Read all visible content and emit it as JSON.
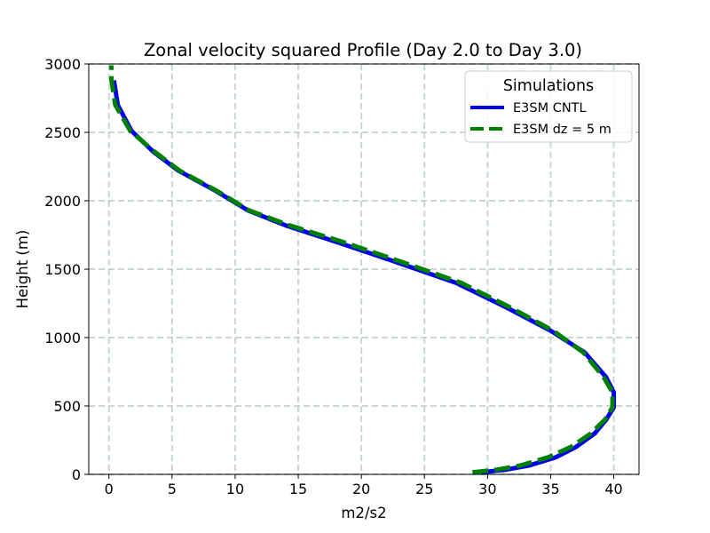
{
  "chart_data": {
    "type": "line",
    "title": "Zonal velocity squared Profile (Day 2.0 to Day 3.0)",
    "xlabel": "m2/s2",
    "ylabel": "Height (m)",
    "xlim": [
      -1.6,
      42.0
    ],
    "ylim": [
      0,
      3000
    ],
    "xticks": [
      0,
      5,
      10,
      15,
      20,
      25,
      30,
      35,
      40
    ],
    "yticks": [
      0,
      500,
      1000,
      1500,
      2000,
      2500,
      3000
    ],
    "grid": true,
    "legend": {
      "title": "Simulations",
      "location": "upper right"
    },
    "series": [
      {
        "name": "E3SM CNTL",
        "color": "#0000ee",
        "style": "solid",
        "x": [
          29.5,
          31.5,
          33.3,
          35.4,
          37.0,
          38.5,
          39.4,
          40.0,
          40.0,
          39.4,
          37.7,
          35.0,
          31.5,
          27.5,
          22.5,
          18.0,
          14.0,
          11.0,
          8.5,
          5.5,
          3.5,
          1.8,
          0.7,
          0.4
        ],
        "y": [
          15,
          35,
          65,
          125,
          200,
          300,
          400,
          490,
          600,
          710,
          890,
          1050,
          1220,
          1400,
          1560,
          1700,
          1820,
          1930,
          2070,
          2220,
          2360,
          2510,
          2700,
          2880
        ]
      },
      {
        "name": "E3SM dz = 5 m",
        "color": "#008000",
        "style": "dashed",
        "x": [
          28.8,
          30.8,
          32.6,
          34.8,
          36.6,
          38.2,
          39.3,
          39.9,
          39.9,
          39.2,
          37.6,
          35.2,
          31.8,
          27.9,
          23.0,
          18.5,
          14.3,
          11.1,
          8.6,
          5.6,
          3.6,
          1.7,
          0.5,
          0.2,
          0.2
        ],
        "y": [
          15,
          35,
          65,
          125,
          200,
          300,
          400,
          490,
          600,
          710,
          890,
          1050,
          1220,
          1400,
          1560,
          1700,
          1820,
          1930,
          2070,
          2220,
          2360,
          2510,
          2700,
          2880,
          2990
        ]
      }
    ]
  }
}
